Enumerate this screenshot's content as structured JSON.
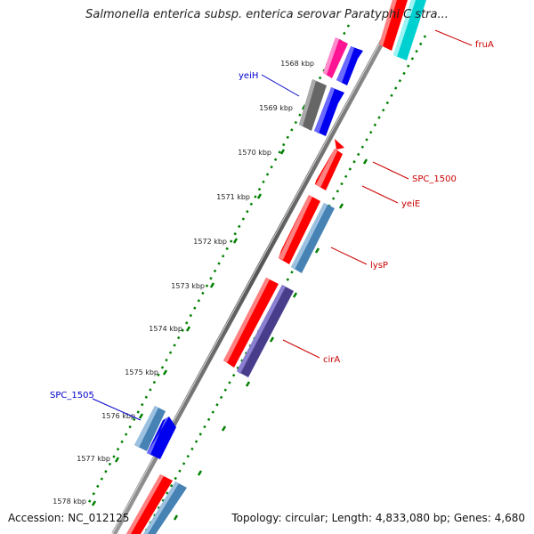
{
  "title": "Salmonella enterica subsp. enterica serovar Paratyphi C stra...",
  "accession": "Accession: NC_012125",
  "topology": "Topology: circular; Length: 4,833,080 bp; Genes: 4,680",
  "colors": {
    "red": "#ff0000",
    "blue": "#0000ee",
    "steel_blue": "#4682b4",
    "magenta": "#ff1493",
    "gray": "#666666",
    "cyan": "#00d0d0",
    "purple": "#483d8b",
    "tick_green": "#008000",
    "label_red": "#cc0000",
    "label_blue": "#0000cc"
  },
  "ticks": [
    {
      "label": "1568 kbp"
    },
    {
      "label": "1569 kbp"
    },
    {
      "label": "1570 kbp"
    },
    {
      "label": "1571 kbp"
    },
    {
      "label": "1572 kbp"
    },
    {
      "label": "1573 kbp"
    },
    {
      "label": "1574 kbp"
    },
    {
      "label": "1575 kbp"
    },
    {
      "label": "1576 kbp"
    },
    {
      "label": "1577 kbp"
    },
    {
      "label": "1578 kbp"
    }
  ],
  "gene_labels": [
    {
      "name": "fruA",
      "strand": "reverse"
    },
    {
      "name": "yeiH",
      "strand": "forward"
    },
    {
      "name": "SPC_1500",
      "strand": "reverse"
    },
    {
      "name": "yeiE",
      "strand": "reverse"
    },
    {
      "name": "lysP",
      "strand": "reverse"
    },
    {
      "name": "cirA",
      "strand": "reverse"
    },
    {
      "name": "SPC_1505",
      "strand": "forward"
    }
  ]
}
